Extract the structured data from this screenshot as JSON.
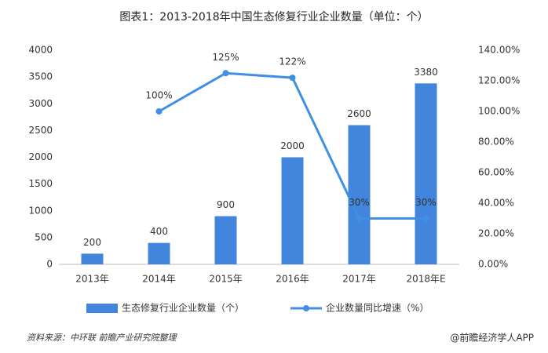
{
  "chart_data": {
    "type": "bar",
    "title": "图表1：2013-2018年中国生态修复行业企业数量（单位：个）",
    "categories": [
      "2013年",
      "2014年",
      "2015年",
      "2016年",
      "2017年",
      "2018年E"
    ],
    "series": [
      {
        "name": "生态修复行业企业数量（个）",
        "type": "bar",
        "color": "#4285dc",
        "values": [
          200,
          400,
          900,
          2000,
          2600,
          3380
        ]
      },
      {
        "name": "企业数量同比增速（%）",
        "type": "line",
        "axis": "y2",
        "color": "#3f8fe4",
        "values": [
          null,
          100,
          125,
          122,
          30,
          30
        ],
        "value_labels": [
          null,
          "100%",
          "125%",
          "122%",
          "30%",
          "30%"
        ]
      }
    ],
    "ylim": [
      0,
      4000
    ],
    "yticks": [
      0,
      500,
      1000,
      1500,
      2000,
      2500,
      3000,
      3500,
      4000
    ],
    "y2lim": [
      0,
      140
    ],
    "y2ticks": [
      {
        "value": 0,
        "label": "0.00%"
      },
      {
        "value": 20,
        "label": "20.00%"
      },
      {
        "value": 40,
        "label": "40.00%"
      },
      {
        "value": 60,
        "label": "60.00%"
      },
      {
        "value": 80,
        "label": "80.00%"
      },
      {
        "value": 100,
        "label": "100.00%"
      },
      {
        "value": 120,
        "label": "120.00%"
      },
      {
        "value": 140,
        "label": "140.00%"
      }
    ],
    "grid": false,
    "legend": "bottom",
    "source": "资料来源：中环联 前瞻产业研究院整理",
    "credit": "@前瞻经济学人APP"
  }
}
